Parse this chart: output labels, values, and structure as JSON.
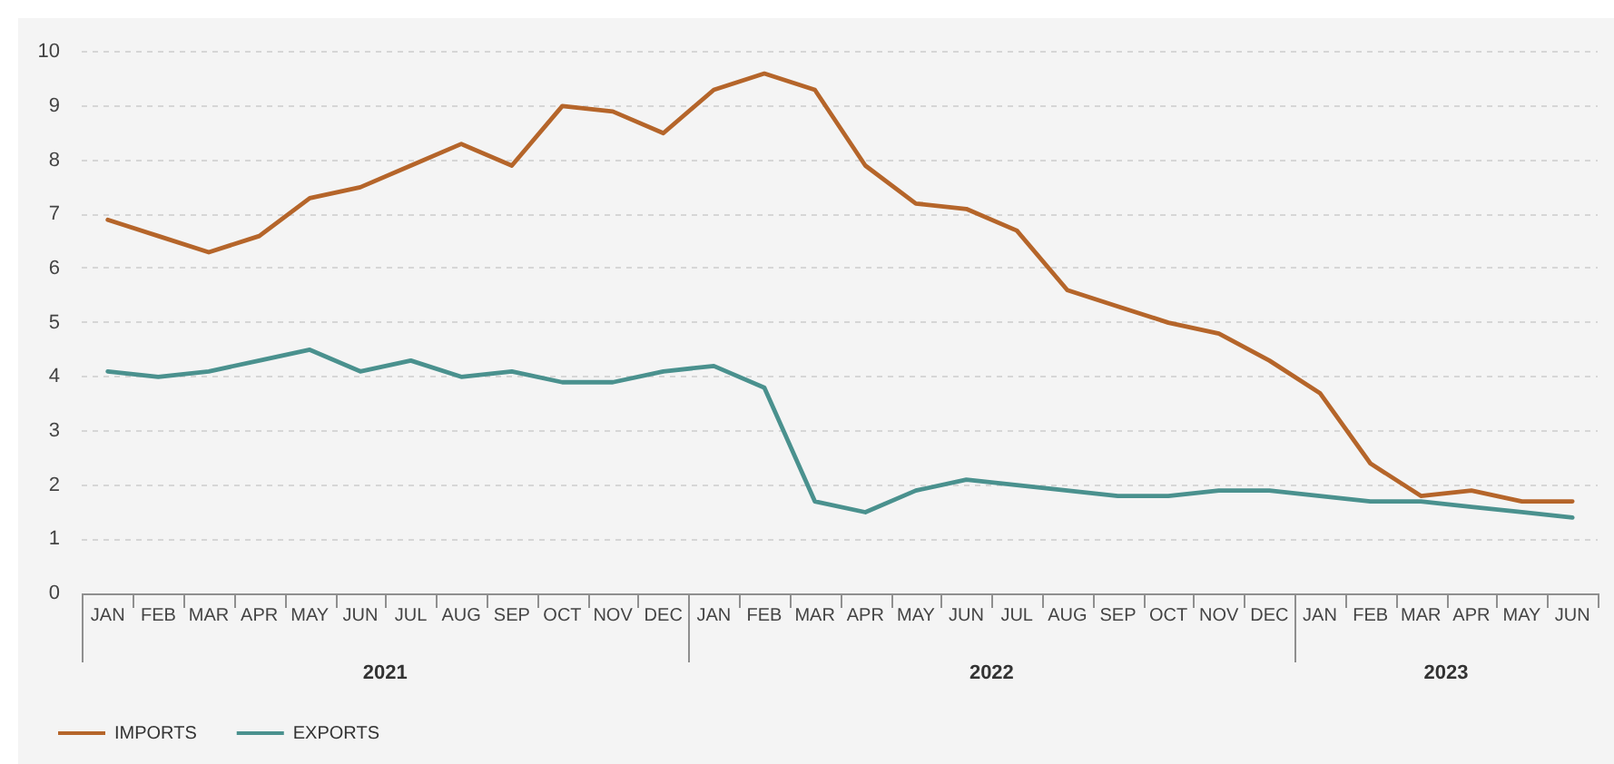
{
  "chart_data": {
    "type": "line",
    "x": [
      "2021-01",
      "2021-02",
      "2021-03",
      "2021-04",
      "2021-05",
      "2021-06",
      "2021-07",
      "2021-08",
      "2021-09",
      "2021-10",
      "2021-11",
      "2021-12",
      "2022-01",
      "2022-02",
      "2022-03",
      "2022-04",
      "2022-05",
      "2022-06",
      "2022-07",
      "2022-08",
      "2022-09",
      "2022-10",
      "2022-11",
      "2022-12",
      "2023-01",
      "2023-02",
      "2023-03",
      "2023-04",
      "2023-05",
      "2023-06"
    ],
    "xlim": [
      "2020-12-16",
      "2023-06-16"
    ],
    "xticks": [
      {
        "value": "2021-01",
        "label": "JAN"
      },
      {
        "value": "2021-02",
        "label": "FEB"
      },
      {
        "value": "2021-03",
        "label": "MAR"
      },
      {
        "value": "2021-04",
        "label": "APR"
      },
      {
        "value": "2021-05",
        "label": "MAY"
      },
      {
        "value": "2021-06",
        "label": "JUN"
      },
      {
        "value": "2021-07",
        "label": "JUL"
      },
      {
        "value": "2021-08",
        "label": "AUG"
      },
      {
        "value": "2021-09",
        "label": "SEP"
      },
      {
        "value": "2021-10",
        "label": "OCT"
      },
      {
        "value": "2021-11",
        "label": "NOV"
      },
      {
        "value": "2021-12",
        "label": "DEC"
      },
      {
        "value": "2022-01",
        "label": "JAN"
      },
      {
        "value": "2022-02",
        "label": "FEB"
      },
      {
        "value": "2022-03",
        "label": "MAR"
      },
      {
        "value": "2022-04",
        "label": "APR"
      },
      {
        "value": "2022-05",
        "label": "MAY"
      },
      {
        "value": "2022-06",
        "label": "JUN"
      },
      {
        "value": "2022-07",
        "label": "JUL"
      },
      {
        "value": "2022-08",
        "label": "AUG"
      },
      {
        "value": "2022-09",
        "label": "SEP"
      },
      {
        "value": "2022-10",
        "label": "OCT"
      },
      {
        "value": "2022-11",
        "label": "NOV"
      },
      {
        "value": "2022-12",
        "label": "DEC"
      },
      {
        "value": "2023-01",
        "label": "JAN"
      },
      {
        "value": "2023-02",
        "label": "FEB"
      },
      {
        "value": "2023-03",
        "label": "MAR"
      },
      {
        "value": "2023-04",
        "label": "APR"
      },
      {
        "value": "2023-05",
        "label": "MAY"
      },
      {
        "value": "2023-06",
        "label": "JUN"
      }
    ],
    "ylim": [
      0,
      10
    ],
    "yticks": [
      0,
      1,
      2,
      3,
      4,
      5,
      6,
      7,
      8,
      9,
      10
    ],
    "series": [
      {
        "name": "IMPORTS",
        "color": "#b5652a",
        "values": [
          6.9,
          6.6,
          6.3,
          6.6,
          7.3,
          7.5,
          7.9,
          8.3,
          7.9,
          9.0,
          8.9,
          8.5,
          9.3,
          9.6,
          9.3,
          7.9,
          7.2,
          7.1,
          6.7,
          5.6,
          5.3,
          5.0,
          4.8,
          4.3,
          3.7,
          2.4,
          1.8,
          1.9,
          1.7,
          1.7
        ]
      },
      {
        "name": "EXPORTS",
        "color": "#4a918e",
        "values": [
          4.1,
          4.0,
          4.1,
          4.3,
          4.5,
          4.1,
          4.3,
          4.0,
          4.1,
          3.9,
          3.9,
          4.1,
          4.2,
          3.8,
          1.7,
          1.5,
          1.9,
          2.1,
          2.0,
          1.9,
          1.8,
          1.8,
          1.9,
          1.9,
          1.8,
          1.7,
          1.7,
          1.6,
          1.5,
          1.4
        ]
      }
    ],
    "annotations": [
      "2021",
      "2022",
      "2023"
    ],
    "grid": "y",
    "legend": "bottom left",
    "marker": "none",
    "line_style": "solid"
  }
}
